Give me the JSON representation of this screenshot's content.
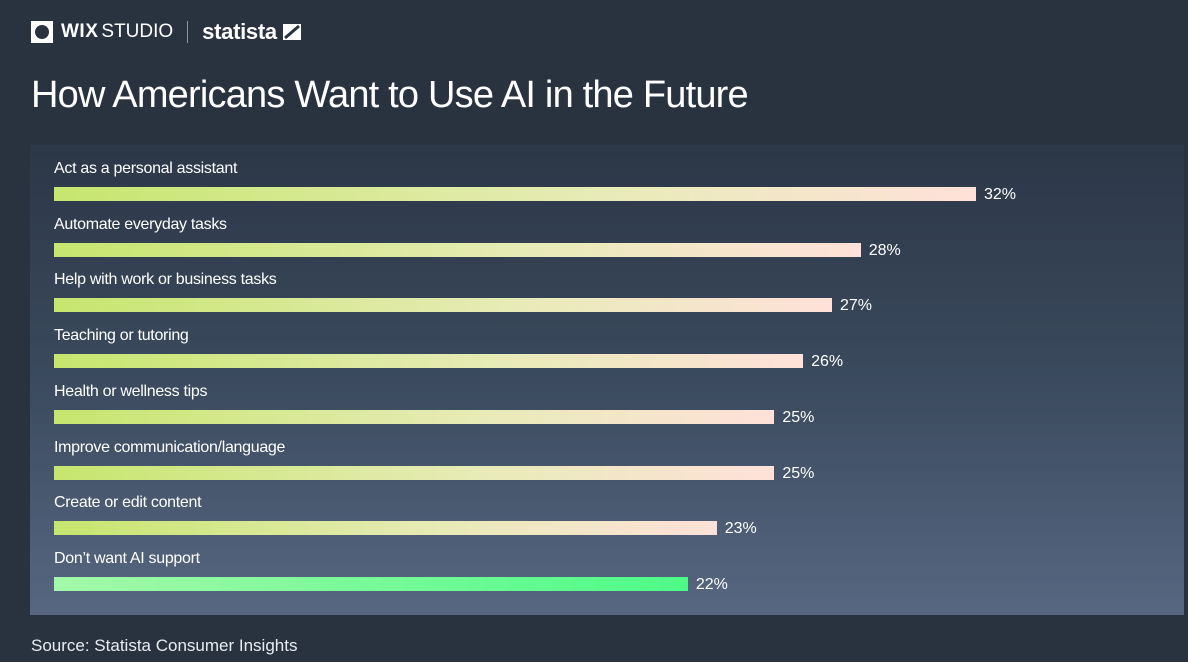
{
  "brand": {
    "wix": "WIX",
    "studio": "STUDIO",
    "statista": "statista"
  },
  "chart_data": {
    "type": "bar",
    "orientation": "horizontal",
    "title": "How Americans Want to Use AI in the Future",
    "categories": [
      "Act as a personal assistant",
      "Automate everyday tasks",
      "Help with work or business tasks",
      "Teaching or tutoring",
      "Health or wellness tips",
      "Improve communication/language",
      "Create or edit content",
      "Don’t want AI support"
    ],
    "values": [
      32,
      28,
      27,
      26,
      25,
      25,
      23,
      22
    ],
    "value_labels": [
      "32%",
      "28%",
      "27%",
      "26%",
      "25%",
      "25%",
      "23%",
      "22%"
    ],
    "unit": "%",
    "xlim": [
      0,
      32
    ],
    "grid": false,
    "colors": {
      "default_start": "#c6e66e",
      "default_end": "#ffe1d9",
      "highlight_start": "#a3f9a9",
      "highlight_end": "#4dfa88"
    }
  },
  "source": "Source: Statista Consumer Insights"
}
